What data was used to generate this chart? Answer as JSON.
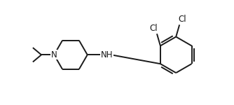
{
  "bg_color": "#ffffff",
  "line_color": "#1a1a1a",
  "line_width": 1.4,
  "font_size": 8.5,
  "figsize": [
    3.34,
    1.5
  ],
  "dpi": 100,
  "xlim": [
    0,
    10
  ],
  "ylim": [
    0,
    4.5
  ],
  "atoms": {
    "Cl1_label": "Cl",
    "Cl2_label": "Cl",
    "N_pip_label": "N",
    "NH_label": "NH"
  }
}
